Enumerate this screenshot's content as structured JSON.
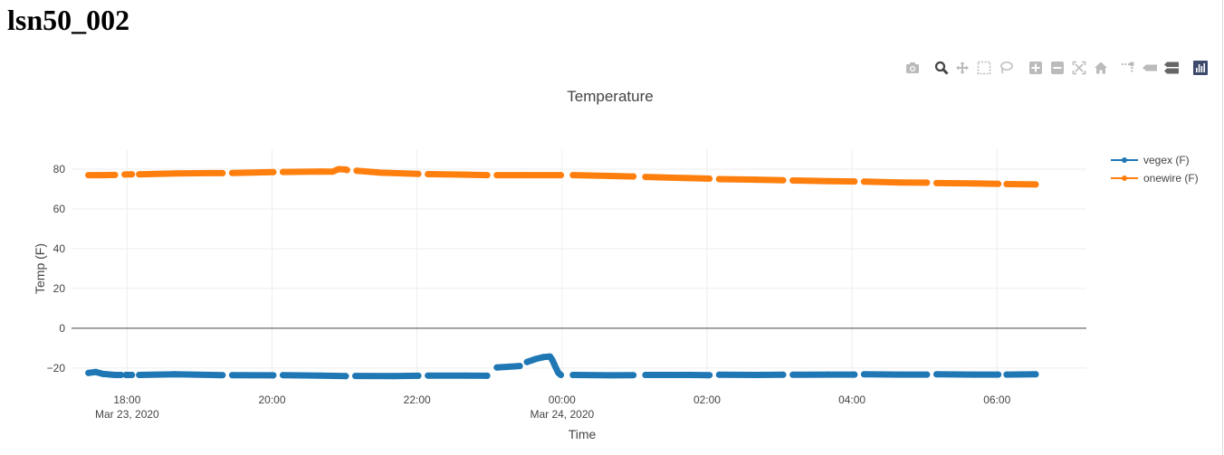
{
  "page": {
    "title": "lsn50_002"
  },
  "modebar": {
    "buttons": [
      {
        "name": "camera-icon",
        "label": "Download plot as a png"
      },
      {
        "name": "zoom-icon",
        "label": "Zoom"
      },
      {
        "name": "pan-icon",
        "label": "Pan"
      },
      {
        "name": "box-select-icon",
        "label": "Box Select"
      },
      {
        "name": "lasso-select-icon",
        "label": "Lasso Select"
      },
      {
        "name": "zoom-in-icon",
        "label": "Zoom in"
      },
      {
        "name": "zoom-out-icon",
        "label": "Zoom out"
      },
      {
        "name": "autoscale-icon",
        "label": "Autoscale"
      },
      {
        "name": "home-icon",
        "label": "Reset axes"
      },
      {
        "name": "spike-lines-icon",
        "label": "Toggle Spike Lines"
      },
      {
        "name": "hover-closest-icon",
        "label": "Show closest data on hover"
      },
      {
        "name": "hover-compare-icon",
        "label": "Compare data on hover"
      },
      {
        "name": "plotly-logo-icon",
        "label": "Produced with Plotly"
      }
    ]
  },
  "chart_data": {
    "type": "line",
    "title": "Temperature",
    "xlabel": "Time",
    "ylabel": "Temp (F)",
    "xlim": [
      "2020-03-23 17:14",
      "2020-03-24 07:14"
    ],
    "ylim": [
      -26,
      90
    ],
    "x_ticks": [
      {
        "time": "2020-03-23 18:00",
        "label": "18:00",
        "sublabel": "Mar 23, 2020"
      },
      {
        "time": "2020-03-23 20:00",
        "label": "20:00",
        "sublabel": ""
      },
      {
        "time": "2020-03-23 22:00",
        "label": "22:00",
        "sublabel": ""
      },
      {
        "time": "2020-03-24 00:00",
        "label": "00:00",
        "sublabel": "Mar 24, 2020"
      },
      {
        "time": "2020-03-24 02:00",
        "label": "02:00",
        "sublabel": ""
      },
      {
        "time": "2020-03-24 04:00",
        "label": "04:00",
        "sublabel": ""
      },
      {
        "time": "2020-03-24 06:00",
        "label": "06:00",
        "sublabel": ""
      }
    ],
    "y_ticks": [
      {
        "value": -20,
        "label": "−20"
      },
      {
        "value": 0,
        "label": "0"
      },
      {
        "value": 20,
        "label": "20"
      },
      {
        "value": 40,
        "label": "40"
      },
      {
        "value": 60,
        "label": "60"
      },
      {
        "value": 80,
        "label": "80"
      }
    ],
    "grid": true,
    "legend": "top-right",
    "series": [
      {
        "name": "vegex (F)",
        "color": "#1f77b4",
        "segments": [
          [
            [
              "2020-03-23 17:28",
              -22.5
            ],
            [
              "2020-03-23 17:34",
              -22.0
            ],
            [
              "2020-03-23 17:40",
              -23.0
            ],
            [
              "2020-03-23 17:50",
              -23.5
            ],
            [
              "2020-03-23 17:55",
              -23.5
            ]
          ],
          [
            [
              "2020-03-23 17:59",
              -23.5
            ],
            [
              "2020-03-23 18:04",
              -23.5
            ]
          ],
          [
            [
              "2020-03-23 18:10",
              -23.5
            ],
            [
              "2020-03-23 18:40",
              -23.2
            ],
            [
              "2020-03-23 19:10",
              -23.5
            ],
            [
              "2020-03-23 19:19",
              -23.6
            ]
          ],
          [
            [
              "2020-03-23 19:27",
              -23.6
            ],
            [
              "2020-03-23 20:01",
              -23.7
            ]
          ],
          [
            [
              "2020-03-23 20:09",
              -23.6
            ],
            [
              "2020-03-23 20:40",
              -23.8
            ],
            [
              "2020-03-23 21:01",
              -24.1
            ]
          ],
          [
            [
              "2020-03-23 21:09",
              -24.0
            ],
            [
              "2020-03-23 21:41",
              -24.1
            ],
            [
              "2020-03-23 22:01",
              -23.9
            ]
          ],
          [
            [
              "2020-03-23 22:09",
              -23.8
            ],
            [
              "2020-03-23 22:40",
              -23.8
            ],
            [
              "2020-03-23 22:58",
              -23.9
            ]
          ],
          [
            [
              "2020-03-23 23:06",
              -19.7
            ],
            [
              "2020-03-23 23:15",
              -19.4
            ],
            [
              "2020-03-23 23:25",
              -19.0
            ]
          ],
          [
            [
              "2020-03-23 23:31",
              -17.0
            ],
            [
              "2020-03-23 23:38",
              -15.5
            ],
            [
              "2020-03-23 23:45",
              -14.5
            ],
            [
              "2020-03-23 23:50",
              -14.2
            ],
            [
              "2020-03-23 23:52",
              -16.0
            ],
            [
              "2020-03-23 23:55",
              -20.0
            ],
            [
              "2020-03-23 23:57",
              -22.5
            ],
            [
              "2020-03-23 23:59",
              -23.5
            ]
          ],
          [
            [
              "2020-03-24 00:09",
              -23.5
            ],
            [
              "2020-03-24 00:40",
              -23.7
            ],
            [
              "2020-03-24 00:59",
              -23.6
            ]
          ],
          [
            [
              "2020-03-24 01:09",
              -23.5
            ],
            [
              "2020-03-24 01:40",
              -23.5
            ],
            [
              "2020-03-24 02:02",
              -23.6
            ]
          ],
          [
            [
              "2020-03-24 02:10",
              -23.4
            ],
            [
              "2020-03-24 02:40",
              -23.5
            ],
            [
              "2020-03-24 03:03",
              -23.4
            ]
          ],
          [
            [
              "2020-03-24 03:11",
              -23.4
            ],
            [
              "2020-03-24 03:40",
              -23.3
            ],
            [
              "2020-03-24 04:02",
              -23.3
            ]
          ],
          [
            [
              "2020-03-24 04:10",
              -23.2
            ],
            [
              "2020-03-24 04:40",
              -23.3
            ],
            [
              "2020-03-24 05:02",
              -23.3
            ]
          ],
          [
            [
              "2020-03-24 05:10",
              -23.2
            ],
            [
              "2020-03-24 05:40",
              -23.3
            ],
            [
              "2020-03-24 06:01",
              -23.3
            ]
          ],
          [
            [
              "2020-03-24 06:08",
              -23.3
            ],
            [
              "2020-03-24 06:32",
              -23.2
            ]
          ]
        ]
      },
      {
        "name": "onewire (F)",
        "color": "#ff7f0e",
        "segments": [
          [
            [
              "2020-03-23 17:28",
              77.0
            ],
            [
              "2020-03-23 17:40",
              77.0
            ],
            [
              "2020-03-23 17:50",
              77.1
            ]
          ],
          [
            [
              "2020-03-23 17:58",
              77.3
            ],
            [
              "2020-03-23 18:04",
              77.4
            ]
          ],
          [
            [
              "2020-03-23 18:10",
              77.4
            ],
            [
              "2020-03-23 18:40",
              77.8
            ],
            [
              "2020-03-23 19:10",
              78.0
            ],
            [
              "2020-03-23 19:19",
              78.0
            ]
          ],
          [
            [
              "2020-03-23 19:27",
              78.1
            ],
            [
              "2020-03-23 20:01",
              78.5
            ]
          ],
          [
            [
              "2020-03-23 20:09",
              78.6
            ],
            [
              "2020-03-23 20:40",
              78.8
            ],
            [
              "2020-03-23 20:50",
              78.7
            ],
            [
              "2020-03-23 20:55",
              80.0
            ],
            [
              "2020-03-23 21:01",
              79.8
            ],
            [
              "2020-03-23 21:02",
              79.6
            ]
          ],
          [
            [
              "2020-03-23 21:10",
              79.2
            ],
            [
              "2020-03-23 21:30",
              78.2
            ],
            [
              "2020-03-23 22:01",
              77.6
            ]
          ],
          [
            [
              "2020-03-23 22:09",
              77.5
            ],
            [
              "2020-03-23 22:40",
              77.2
            ],
            [
              "2020-03-23 22:58",
              77.0
            ]
          ],
          [
            [
              "2020-03-23 23:06",
              77.0
            ],
            [
              "2020-03-23 23:30",
              77.0
            ],
            [
              "2020-03-23 23:59",
              77.0
            ]
          ],
          [
            [
              "2020-03-24 00:09",
              77.0
            ],
            [
              "2020-03-24 00:40",
              76.6
            ],
            [
              "2020-03-24 00:59",
              76.3
            ]
          ],
          [
            [
              "2020-03-24 01:09",
              76.1
            ],
            [
              "2020-03-24 01:40",
              75.6
            ],
            [
              "2020-03-24 02:02",
              75.2
            ]
          ],
          [
            [
              "2020-03-24 02:10",
              75.0
            ],
            [
              "2020-03-24 02:40",
              74.7
            ],
            [
              "2020-03-24 03:03",
              74.4
            ]
          ],
          [
            [
              "2020-03-24 03:11",
              74.3
            ],
            [
              "2020-03-24 03:40",
              74.0
            ],
            [
              "2020-03-24 04:02",
              73.8
            ]
          ],
          [
            [
              "2020-03-24 04:10",
              73.7
            ],
            [
              "2020-03-24 04:40",
              73.3
            ],
            [
              "2020-03-24 05:02",
              73.2
            ]
          ],
          [
            [
              "2020-03-24 05:10",
              73.0
            ],
            [
              "2020-03-24 05:40",
              72.8
            ],
            [
              "2020-03-24 06:01",
              72.6
            ]
          ],
          [
            [
              "2020-03-24 06:08",
              72.5
            ],
            [
              "2020-03-24 06:32",
              72.3
            ]
          ]
        ]
      }
    ]
  }
}
